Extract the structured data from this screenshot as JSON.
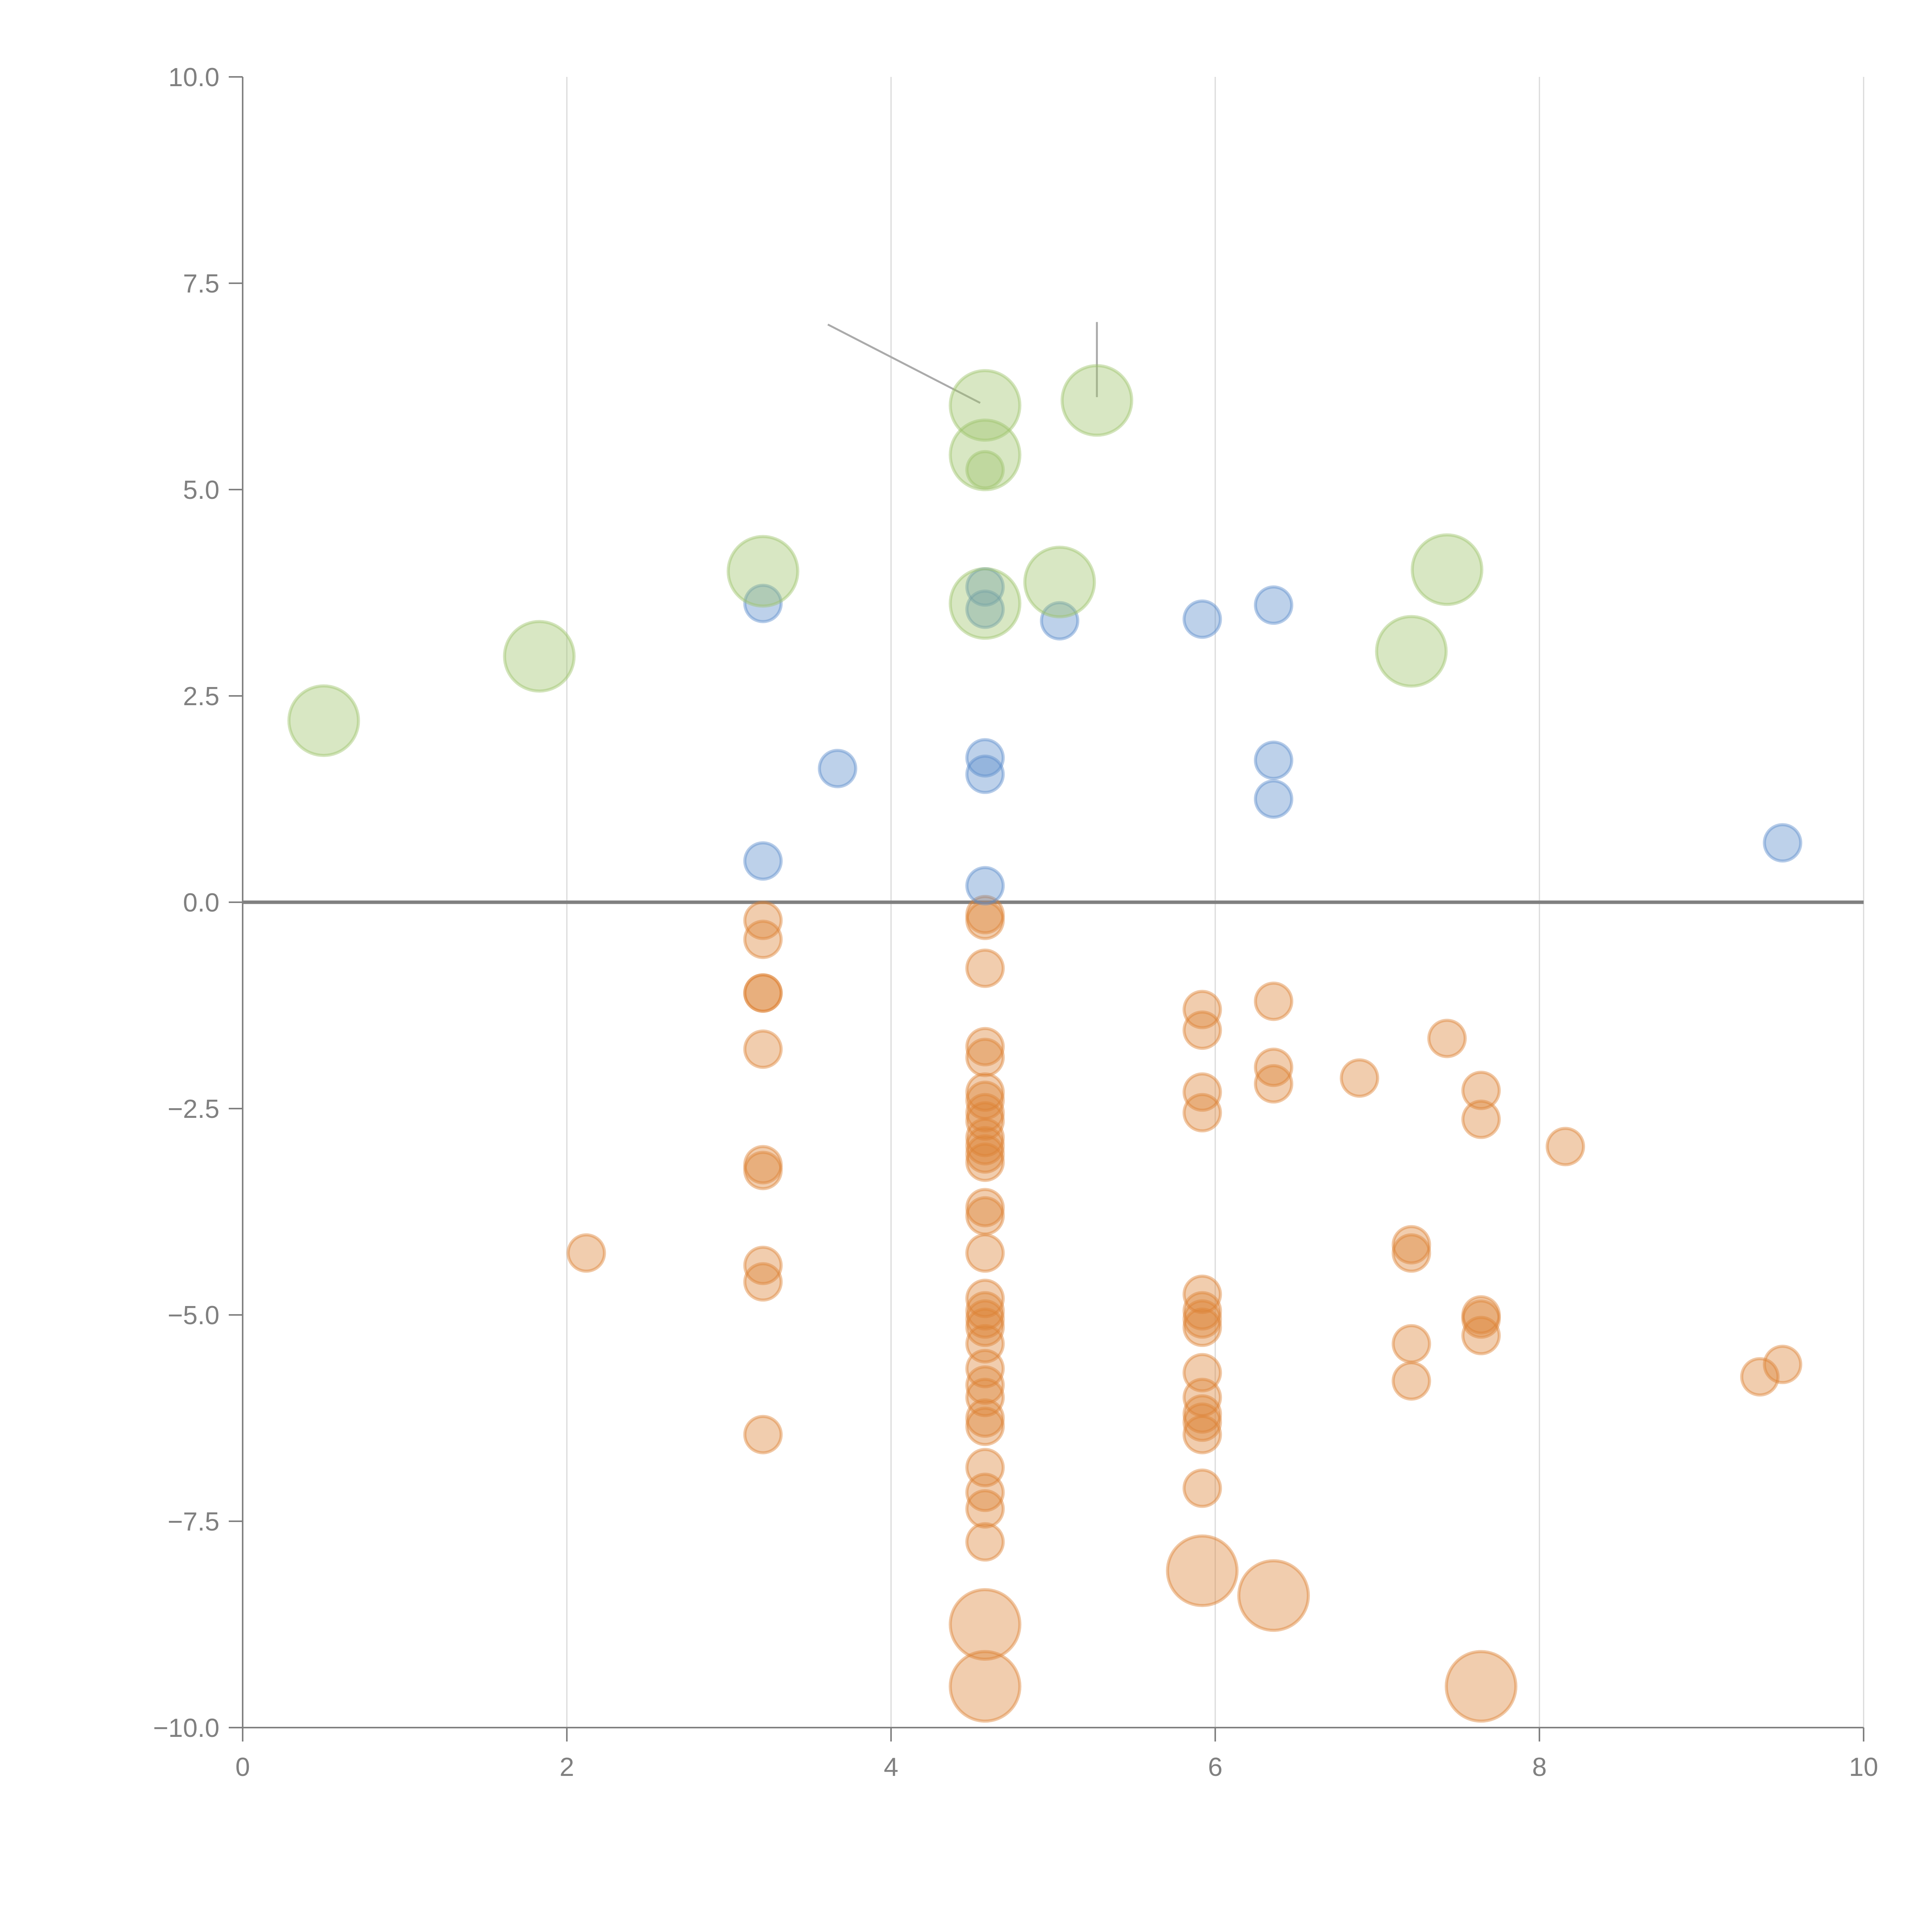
{
  "chart_data": {
    "type": "scatter",
    "title": "",
    "xlabel": "",
    "ylabel": "",
    "xlim": [
      0,
      10
    ],
    "ylim": [
      -10,
      10
    ],
    "grid": "vertical",
    "legend": "none",
    "x_ticks": [
      "0",
      "2",
      "4",
      "6",
      "8",
      "10"
    ],
    "x_tick_values": [
      0,
      2,
      4,
      6,
      8,
      10
    ],
    "y_ticks": [
      "10.0",
      "7.5",
      "5.0",
      "2.5",
      "0.0",
      "−2.5",
      "−5.0",
      "−7.5",
      "−10.0"
    ],
    "y_tick_values": [
      10,
      7.5,
      5,
      2.5,
      0,
      -2.5,
      -5,
      -7.5,
      -10
    ],
    "series": [
      {
        "name": "green",
        "color": "#9dc36a",
        "size": "large",
        "points": [
          [
            0.5,
            2.2
          ],
          [
            1.83,
            2.98
          ],
          [
            3.21,
            4.01
          ],
          [
            4.58,
            6.02
          ],
          [
            4.58,
            5.42
          ],
          [
            4.58,
            3.62
          ],
          [
            5.27,
            6.08
          ],
          [
            5.04,
            3.88
          ],
          [
            7.21,
            3.04
          ],
          [
            7.43,
            4.03
          ]
        ]
      },
      {
        "name": "green-small",
        "color": "#9dc36a",
        "size": "small",
        "points": [
          [
            4.58,
            5.24
          ]
        ]
      },
      {
        "name": "blue",
        "color": "#5b8ccb",
        "size": "small",
        "points": [
          [
            3.21,
            3.62
          ],
          [
            3.21,
            0.5
          ],
          [
            3.67,
            1.62
          ],
          [
            4.58,
            3.82
          ],
          [
            4.58,
            3.55
          ],
          [
            4.58,
            1.75
          ],
          [
            4.58,
            1.55
          ],
          [
            4.58,
            0.2
          ],
          [
            5.04,
            3.41
          ],
          [
            5.92,
            3.43
          ],
          [
            6.36,
            3.6
          ],
          [
            6.36,
            1.72
          ],
          [
            6.36,
            1.25
          ],
          [
            9.5,
            0.72
          ]
        ]
      },
      {
        "name": "orange",
        "color": "#dd8235",
        "size": "small",
        "points": [
          [
            2.12,
            -4.25
          ],
          [
            3.21,
            -0.22
          ],
          [
            3.21,
            -0.45
          ],
          [
            3.21,
            -1.1
          ],
          [
            3.21,
            -1.1
          ],
          [
            3.21,
            -1.78
          ],
          [
            3.21,
            -3.18
          ],
          [
            3.21,
            -3.25
          ],
          [
            3.21,
            -4.4
          ],
          [
            3.21,
            -4.6
          ],
          [
            3.21,
            -6.45
          ],
          [
            4.58,
            -0.15
          ],
          [
            4.58,
            -0.22
          ],
          [
            4.58,
            -0.8
          ],
          [
            4.58,
            -1.75
          ],
          [
            4.58,
            -1.88
          ],
          [
            4.58,
            -2.3
          ],
          [
            4.58,
            -2.4
          ],
          [
            4.58,
            -2.55
          ],
          [
            4.58,
            -2.65
          ],
          [
            4.58,
            -2.85
          ],
          [
            4.58,
            -2.95
          ],
          [
            4.58,
            -3.05
          ],
          [
            4.58,
            -3.15
          ],
          [
            4.58,
            -3.7
          ],
          [
            4.58,
            -3.8
          ],
          [
            4.58,
            -4.25
          ],
          [
            4.58,
            -4.8
          ],
          [
            4.58,
            -4.95
          ],
          [
            4.58,
            -5.05
          ],
          [
            4.58,
            -5.15
          ],
          [
            4.58,
            -5.35
          ],
          [
            4.58,
            -5.65
          ],
          [
            4.58,
            -5.85
          ],
          [
            4.58,
            -6.0
          ],
          [
            4.58,
            -6.25
          ],
          [
            4.58,
            -6.35
          ],
          [
            4.58,
            -6.85
          ],
          [
            4.58,
            -7.15
          ],
          [
            4.58,
            -7.35
          ],
          [
            4.58,
            -7.75
          ],
          [
            5.92,
            -1.3
          ],
          [
            5.92,
            -1.55
          ],
          [
            5.92,
            -2.3
          ],
          [
            5.92,
            -2.55
          ],
          [
            5.92,
            -4.75
          ],
          [
            5.92,
            -4.95
          ],
          [
            5.92,
            -5.05
          ],
          [
            5.92,
            -5.15
          ],
          [
            5.92,
            -5.7
          ],
          [
            5.92,
            -6.0
          ],
          [
            5.92,
            -6.2
          ],
          [
            5.92,
            -6.3
          ],
          [
            5.92,
            -6.45
          ],
          [
            5.92,
            -7.1
          ],
          [
            6.36,
            -1.2
          ],
          [
            6.36,
            -2.0
          ],
          [
            6.36,
            -2.2
          ],
          [
            6.89,
            -2.13
          ],
          [
            7.21,
            -4.15
          ],
          [
            7.21,
            -4.25
          ],
          [
            7.21,
            -5.35
          ],
          [
            7.21,
            -5.8
          ],
          [
            7.43,
            -1.65
          ],
          [
            7.64,
            -2.28
          ],
          [
            7.64,
            -2.63
          ],
          [
            7.64,
            -5.0
          ],
          [
            7.64,
            -5.05
          ],
          [
            7.64,
            -5.25
          ],
          [
            8.16,
            -2.96
          ],
          [
            9.36,
            -5.75
          ],
          [
            9.5,
            -5.6
          ]
        ]
      },
      {
        "name": "orange-large",
        "color": "#dd8235",
        "size": "large",
        "points": [
          [
            4.58,
            -8.75
          ],
          [
            4.58,
            -9.5
          ],
          [
            5.92,
            -8.1
          ],
          [
            6.36,
            -8.4
          ],
          [
            7.64,
            -9.5
          ]
        ]
      }
    ],
    "annotations": [
      {
        "type": "leader-line",
        "from": [
          3.61,
          7.0
        ],
        "to": [
          4.55,
          6.05
        ]
      },
      {
        "type": "leader-line",
        "from": [
          5.27,
          7.03
        ],
        "to": [
          5.27,
          6.12
        ]
      }
    ]
  }
}
